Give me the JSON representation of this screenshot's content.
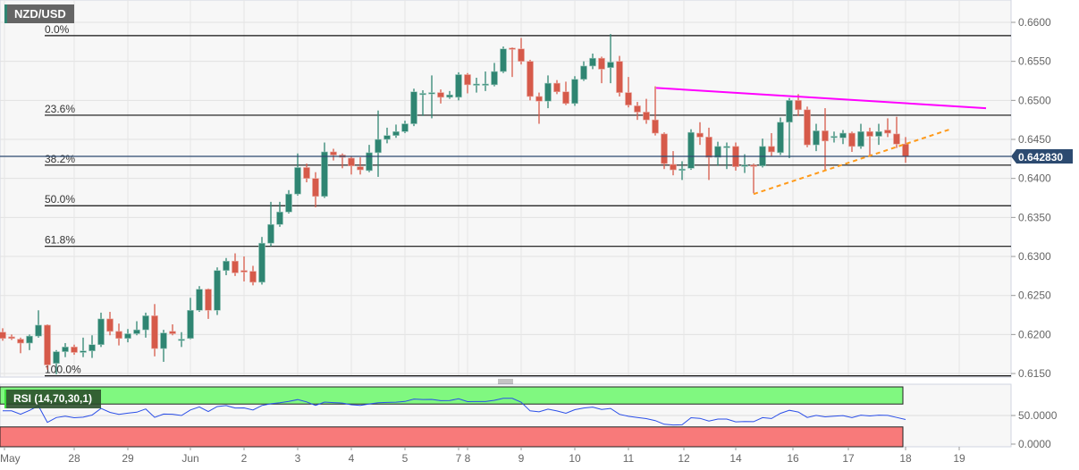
{
  "header": {
    "symbol": "NZD/USD"
  },
  "indicator": {
    "label": "RSI (14,70,30,1)",
    "period": 14,
    "overbought": 70,
    "oversold": 30
  },
  "colors": {
    "up": "#2f8572",
    "down": "#d65a4a",
    "resistance": "#ff00ff",
    "support": "#ff9a1a",
    "price_line": "#2c4a70",
    "overbought_band": "#80f880",
    "oversold_band": "#f87a7a",
    "rsi_line": "#2a4ee8"
  },
  "chart_data": {
    "type": "candlestick",
    "title": "NZD/USD",
    "ylim": [
      0.615,
      0.66
    ],
    "y_ticks": [
      "0.6600",
      "0.6550",
      "0.6500",
      "0.6450",
      "0.6400",
      "0.6350",
      "0.6300",
      "0.6250",
      "0.6200",
      "0.6150"
    ],
    "x_ticks": [
      {
        "label": "May",
        "i": 0.2
      },
      {
        "label": "28",
        "i": 8
      },
      {
        "label": "29",
        "i": 14
      },
      {
        "label": "Jun",
        "i": 21
      },
      {
        "label": "2",
        "i": 27
      },
      {
        "label": "3",
        "i": 33
      },
      {
        "label": "4",
        "i": 39
      },
      {
        "label": "5",
        "i": 45
      },
      {
        "label": "7",
        "i": 51
      },
      {
        "label": "8",
        "i": 52
      },
      {
        "label": "9",
        "i": 58
      },
      {
        "label": "10",
        "i": 64
      },
      {
        "label": "11",
        "i": 70
      },
      {
        "label": "12",
        "i": 76.2
      },
      {
        "label": "14",
        "i": 82
      },
      {
        "label": "16",
        "i": 88.4
      },
      {
        "label": "17",
        "i": 94.6
      },
      {
        "label": "18",
        "i": 101
      },
      {
        "label": "19",
        "i": 107
      }
    ],
    "current_price": {
      "value": 0.64283,
      "label": "0.642830"
    },
    "fibonacci": [
      {
        "label": "0.0%",
        "value": 0.6583
      },
      {
        "label": "23.6%",
        "value": 0.6481
      },
      {
        "label": "38.2%",
        "value": 0.6417
      },
      {
        "label": "50.0%",
        "value": 0.6365
      },
      {
        "label": "61.8%",
        "value": 0.6313
      },
      {
        "label": "100.0%",
        "value": 0.6147
      }
    ],
    "trendlines": [
      {
        "name": "resistance",
        "style": "solid",
        "from": {
          "i": 73.1,
          "p": 0.6516
        },
        "to": {
          "i": 110,
          "p": 0.649
        }
      },
      {
        "name": "support",
        "style": "dashed",
        "from": {
          "i": 84,
          "p": 0.638
        },
        "to": {
          "i": 106,
          "p": 0.6463
        }
      }
    ],
    "rsi_axis": {
      "ticks": [
        "50.0000",
        "0.0000"
      ],
      "values": [
        50,
        0
      ]
    },
    "ohlc": [
      [
        0.6203,
        0.6208,
        0.6192,
        0.6195
      ],
      [
        0.6197,
        0.62,
        0.6193,
        0.6195
      ],
      [
        0.6194,
        0.6196,
        0.6176,
        0.6189
      ],
      [
        0.6189,
        0.62,
        0.618,
        0.6198
      ],
      [
        0.6198,
        0.6231,
        0.6196,
        0.6212
      ],
      [
        0.6212,
        0.6213,
        0.6155,
        0.6161
      ],
      [
        0.6163,
        0.618,
        0.6149,
        0.6178
      ],
      [
        0.6178,
        0.6189,
        0.6171,
        0.6184
      ],
      [
        0.6184,
        0.6187,
        0.6174,
        0.6177
      ],
      [
        0.6177,
        0.6196,
        0.6171,
        0.6179
      ],
      [
        0.6179,
        0.6199,
        0.617,
        0.6187
      ],
      [
        0.6187,
        0.6228,
        0.6184,
        0.622
      ],
      [
        0.622,
        0.6229,
        0.6199,
        0.6204
      ],
      [
        0.6204,
        0.6214,
        0.6186,
        0.6195
      ],
      [
        0.6195,
        0.6207,
        0.619,
        0.6201
      ],
      [
        0.6201,
        0.6217,
        0.6199,
        0.6206
      ],
      [
        0.6206,
        0.6228,
        0.6196,
        0.6224
      ],
      [
        0.6224,
        0.6239,
        0.6172,
        0.6182
      ],
      [
        0.6182,
        0.6206,
        0.6165,
        0.6202
      ],
      [
        0.6204,
        0.6213,
        0.6199,
        0.6201
      ],
      [
        0.6193,
        0.6203,
        0.6184,
        0.6194
      ],
      [
        0.6195,
        0.6247,
        0.6194,
        0.6231
      ],
      [
        0.6231,
        0.6262,
        0.6229,
        0.6258
      ],
      [
        0.6258,
        0.6259,
        0.622,
        0.6231
      ],
      [
        0.6231,
        0.6286,
        0.6225,
        0.6282
      ],
      [
        0.6282,
        0.6298,
        0.6276,
        0.6294
      ],
      [
        0.6294,
        0.6304,
        0.6275,
        0.6279
      ],
      [
        0.6282,
        0.63,
        0.6268,
        0.628
      ],
      [
        0.6281,
        0.6288,
        0.6263,
        0.6267
      ],
      [
        0.6267,
        0.6325,
        0.6264,
        0.6317
      ],
      [
        0.6317,
        0.637,
        0.6313,
        0.6341
      ],
      [
        0.6341,
        0.637,
        0.6338,
        0.6357
      ],
      [
        0.6357,
        0.6385,
        0.6355,
        0.638
      ],
      [
        0.638,
        0.6432,
        0.6378,
        0.6414
      ],
      [
        0.6414,
        0.6419,
        0.6395,
        0.64
      ],
      [
        0.64,
        0.6408,
        0.6363,
        0.6377
      ],
      [
        0.6377,
        0.6446,
        0.6375,
        0.6434
      ],
      [
        0.6434,
        0.6438,
        0.6423,
        0.643
      ],
      [
        0.643,
        0.6432,
        0.6413,
        0.6427
      ],
      [
        0.6426,
        0.6428,
        0.6405,
        0.6416
      ],
      [
        0.6415,
        0.6427,
        0.6405,
        0.6411
      ],
      [
        0.641,
        0.6443,
        0.6408,
        0.6433
      ],
      [
        0.6433,
        0.6487,
        0.6402,
        0.645
      ],
      [
        0.645,
        0.6465,
        0.6445,
        0.6455
      ],
      [
        0.6455,
        0.6469,
        0.6452,
        0.646
      ],
      [
        0.646,
        0.6474,
        0.6458,
        0.647
      ],
      [
        0.647,
        0.6515,
        0.6467,
        0.6511
      ],
      [
        0.6509,
        0.6513,
        0.648,
        0.6509
      ],
      [
        0.6509,
        0.6532,
        0.6477,
        0.651
      ],
      [
        0.651,
        0.6514,
        0.6496,
        0.6504
      ],
      [
        0.6504,
        0.6512,
        0.6502,
        0.6507
      ],
      [
        0.6504,
        0.6536,
        0.65,
        0.6533
      ],
      [
        0.6533,
        0.6535,
        0.6509,
        0.652
      ],
      [
        0.652,
        0.6529,
        0.651,
        0.6521
      ],
      [
        0.652,
        0.6537,
        0.6512,
        0.6521
      ],
      [
        0.652,
        0.6548,
        0.6518,
        0.6537
      ],
      [
        0.6537,
        0.6569,
        0.6535,
        0.6566
      ],
      [
        0.6567,
        0.6568,
        0.653,
        0.6566
      ],
      [
        0.6566,
        0.658,
        0.6546,
        0.655
      ],
      [
        0.655,
        0.6552,
        0.65,
        0.6505
      ],
      [
        0.6505,
        0.651,
        0.647,
        0.6499
      ],
      [
        0.6499,
        0.6532,
        0.649,
        0.6522
      ],
      [
        0.6522,
        0.6526,
        0.6508,
        0.6511
      ],
      [
        0.6511,
        0.6524,
        0.6494,
        0.6496
      ],
      [
        0.6496,
        0.6531,
        0.6493,
        0.6527
      ],
      [
        0.6527,
        0.655,
        0.6525,
        0.6544
      ],
      [
        0.6544,
        0.656,
        0.654,
        0.6554
      ],
      [
        0.6554,
        0.6556,
        0.6522,
        0.654
      ],
      [
        0.6542,
        0.6585,
        0.6522,
        0.6549
      ],
      [
        0.655,
        0.6557,
        0.6505,
        0.651
      ],
      [
        0.651,
        0.653,
        0.6491,
        0.6494
      ],
      [
        0.6493,
        0.6498,
        0.6475,
        0.6485
      ],
      [
        0.6485,
        0.6502,
        0.647,
        0.6475
      ],
      [
        0.6475,
        0.6518,
        0.6455,
        0.6458
      ],
      [
        0.6457,
        0.6459,
        0.6412,
        0.6419
      ],
      [
        0.6418,
        0.6435,
        0.6404,
        0.6411
      ],
      [
        0.6411,
        0.6422,
        0.6398,
        0.6412
      ],
      [
        0.6413,
        0.6463,
        0.6411,
        0.6459
      ],
      [
        0.6458,
        0.6472,
        0.6443,
        0.6453
      ],
      [
        0.6453,
        0.6465,
        0.6398,
        0.6427
      ],
      [
        0.6427,
        0.6447,
        0.6416,
        0.6441
      ],
      [
        0.644,
        0.6446,
        0.6412,
        0.6441
      ],
      [
        0.6441,
        0.6446,
        0.641,
        0.6415
      ],
      [
        0.6416,
        0.6431,
        0.6407,
        0.6417
      ],
      [
        0.6417,
        0.6419,
        0.6381,
        0.6416
      ],
      [
        0.6416,
        0.6451,
        0.6414,
        0.6441
      ],
      [
        0.6441,
        0.6458,
        0.6428,
        0.6434
      ],
      [
        0.6433,
        0.6478,
        0.643,
        0.6472
      ],
      [
        0.6472,
        0.6503,
        0.6426,
        0.65
      ],
      [
        0.65,
        0.6508,
        0.648,
        0.6488
      ],
      [
        0.6488,
        0.6492,
        0.644,
        0.6443
      ],
      [
        0.6443,
        0.647,
        0.6435,
        0.6461
      ],
      [
        0.6461,
        0.649,
        0.641,
        0.6448
      ],
      [
        0.6453,
        0.646,
        0.6446,
        0.6454
      ],
      [
        0.6452,
        0.6462,
        0.6444,
        0.6458
      ],
      [
        0.6458,
        0.646,
        0.6434,
        0.6441
      ],
      [
        0.6441,
        0.647,
        0.6438,
        0.646
      ],
      [
        0.646,
        0.6465,
        0.643,
        0.6454
      ],
      [
        0.6454,
        0.647,
        0.6443,
        0.646
      ],
      [
        0.6462,
        0.6477,
        0.6453,
        0.6458
      ],
      [
        0.6457,
        0.6479,
        0.6439,
        0.6444
      ],
      [
        0.6444,
        0.6453,
        0.642,
        0.6428
      ]
    ]
  }
}
